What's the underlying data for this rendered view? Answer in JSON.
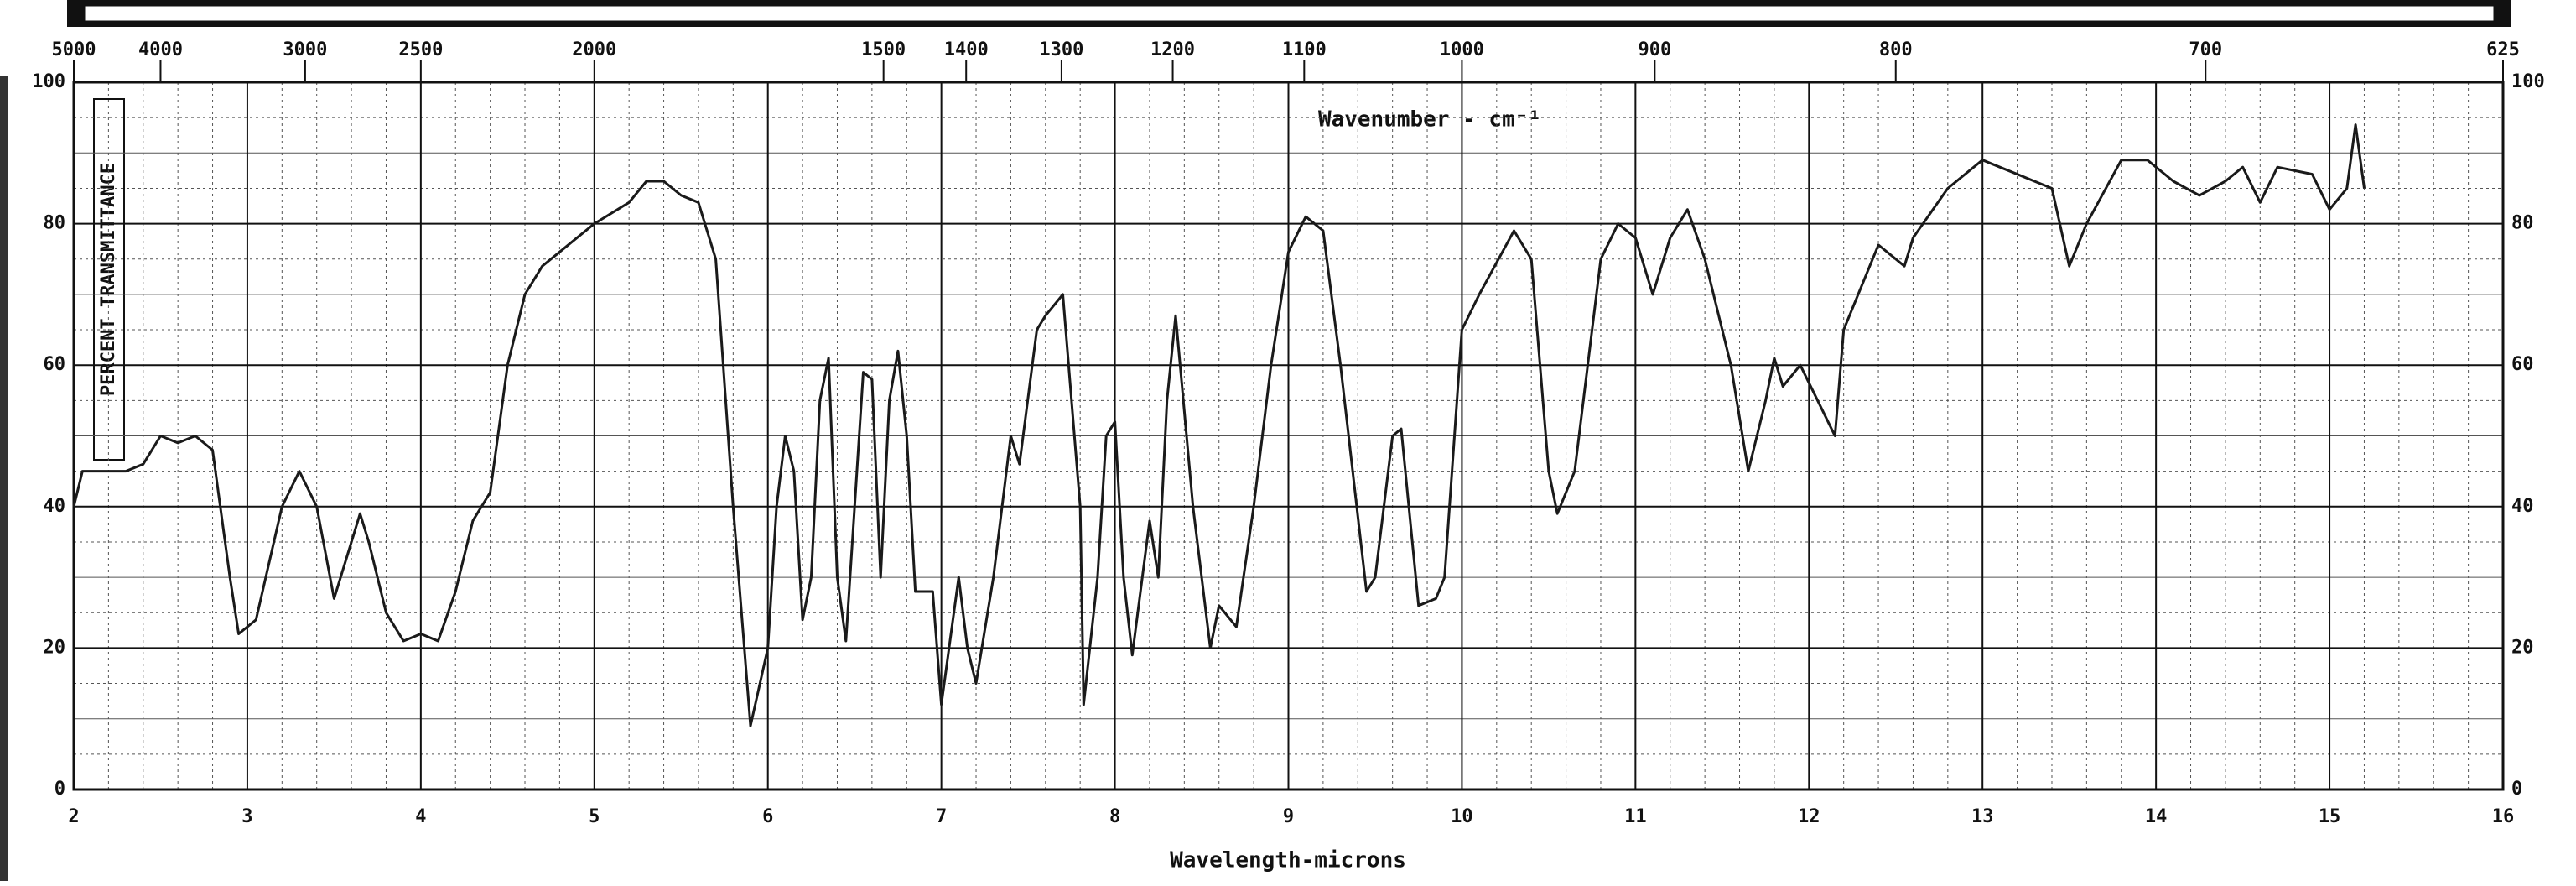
{
  "chart_data": {
    "type": "line",
    "x_label": "Wavelength-microns",
    "y_label": "PERCENT TRANSMITTANCE",
    "annotation": "Wavenumber - cm⁻¹",
    "color": "#1a1a1a",
    "grid": true,
    "xlim": [
      2,
      16
    ],
    "xticks": [
      2,
      3,
      4,
      5,
      6,
      7,
      8,
      9,
      10,
      11,
      12,
      13,
      14,
      15,
      16
    ],
    "ylim": [
      0,
      100
    ],
    "yticks": [
      0,
      20,
      40,
      60,
      80,
      100
    ],
    "x2ticks": [
      5000,
      4000,
      3000,
      2500,
      2000,
      1500,
      1400,
      1300,
      1200,
      1100,
      1000,
      900,
      800,
      700,
      625
    ],
    "x": [
      2.0,
      2.05,
      2.3,
      2.4,
      2.5,
      2.6,
      2.7,
      2.8,
      2.9,
      2.95,
      3.05,
      3.2,
      3.3,
      3.4,
      3.5,
      3.6,
      3.65,
      3.7,
      3.8,
      3.9,
      4.0,
      4.1,
      4.2,
      4.3,
      4.4,
      4.5,
      4.6,
      4.7,
      5.0,
      5.2,
      5.3,
      5.4,
      5.5,
      5.6,
      5.7,
      5.8,
      5.9,
      6.0,
      6.05,
      6.1,
      6.15,
      6.2,
      6.25,
      6.3,
      6.35,
      6.4,
      6.45,
      6.5,
      6.55,
      6.6,
      6.65,
      6.7,
      6.75,
      6.8,
      6.85,
      6.95,
      7.0,
      7.1,
      7.15,
      7.2,
      7.3,
      7.4,
      7.45,
      7.55,
      7.6,
      7.7,
      7.8,
      7.82,
      7.9,
      7.95,
      8.0,
      8.05,
      8.1,
      8.2,
      8.25,
      8.3,
      8.35,
      8.45,
      8.55,
      8.6,
      8.7,
      8.8,
      8.9,
      9.0,
      9.1,
      9.2,
      9.3,
      9.45,
      9.5,
      9.6,
      9.65,
      9.75,
      9.85,
      9.9,
      10.0,
      10.1,
      10.3,
      10.4,
      10.5,
      10.55,
      10.65,
      10.8,
      10.9,
      11.0,
      11.1,
      11.2,
      11.3,
      11.4,
      11.55,
      11.65,
      11.75,
      11.8,
      11.85,
      11.95,
      12.05,
      12.15,
      12.2,
      12.4,
      12.55,
      12.6,
      12.8,
      13.0,
      13.1,
      13.4,
      13.5,
      13.6,
      13.8,
      13.95,
      14.1,
      14.25,
      14.4,
      14.5,
      14.6,
      14.7,
      14.9,
      15.0,
      15.1,
      15.15,
      15.2
    ],
    "values": [
      40,
      45,
      45,
      46,
      50,
      49,
      50,
      48,
      30,
      22,
      24,
      40,
      45,
      40,
      27,
      35,
      39,
      35,
      25,
      21,
      22,
      21,
      28,
      38,
      42,
      60,
      70,
      74,
      80,
      83,
      86,
      86,
      84,
      83,
      75,
      40,
      9,
      20,
      40,
      50,
      45,
      24,
      30,
      55,
      61,
      30,
      21,
      40,
      59,
      58,
      30,
      55,
      62,
      50,
      28,
      28,
      12,
      30,
      20,
      15,
      30,
      50,
      46,
      65,
      67,
      70,
      40,
      12,
      30,
      50,
      52,
      30,
      19,
      38,
      30,
      55,
      67,
      40,
      20,
      26,
      23,
      40,
      60,
      76,
      81,
      79,
      60,
      28,
      30,
      50,
      51,
      26,
      27,
      30,
      65,
      70,
      79,
      75,
      45,
      39,
      45,
      75,
      80,
      78,
      70,
      78,
      82,
      75,
      60,
      45,
      55,
      61,
      57,
      60,
      55,
      50,
      65,
      77,
      74,
      78,
      85,
      89,
      88,
      85,
      74,
      80,
      89,
      89,
      86,
      84,
      86,
      88,
      83,
      88,
      87,
      82,
      85,
      94,
      85
    ]
  }
}
